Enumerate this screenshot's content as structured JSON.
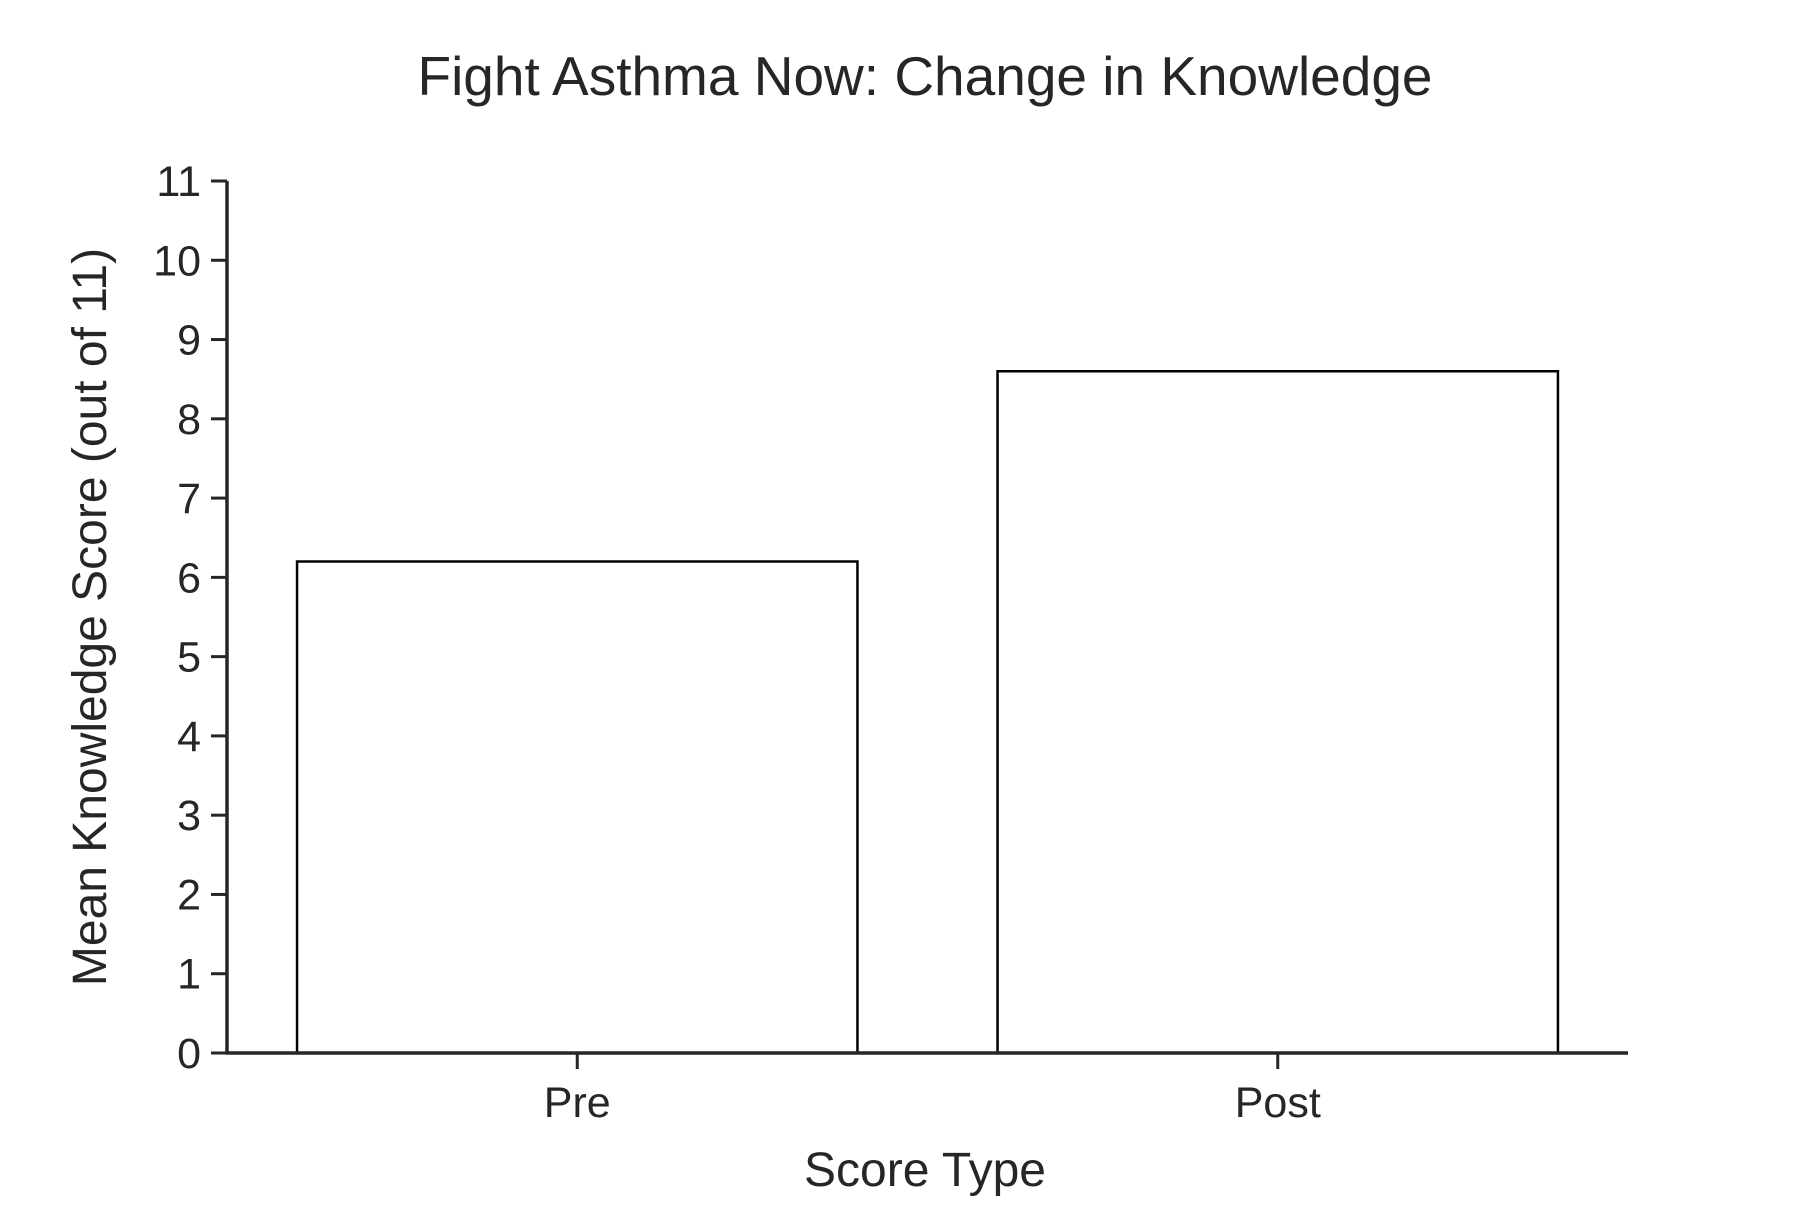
{
  "chart_data": {
    "type": "bar",
    "title": "Fight Asthma Now: Change in Knowledge",
    "xlabel": "Score Type",
    "ylabel": "Mean Knowledge Score (out of 11)",
    "categories": [
      "Pre",
      "Post"
    ],
    "values": [
      6.2,
      8.6
    ],
    "ylim": [
      0,
      11
    ],
    "yticks": [
      0,
      1,
      2,
      3,
      4,
      5,
      6,
      7,
      8,
      9,
      10,
      11
    ],
    "grid": false,
    "legend": "none",
    "colors": {
      "bar_fill": "#ffffff",
      "bar_edge": "#000000",
      "axis": "#262626",
      "text": "#262626"
    }
  }
}
